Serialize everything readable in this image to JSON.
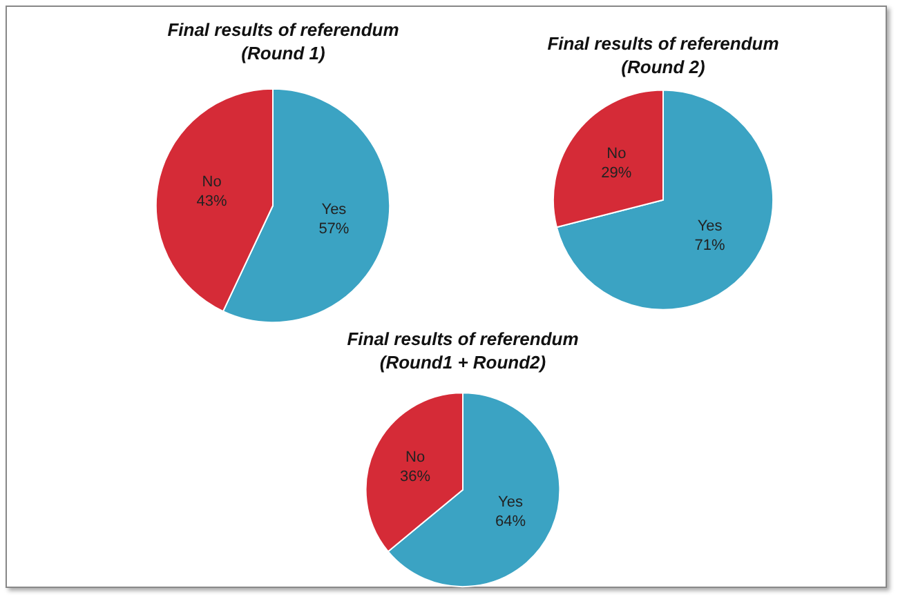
{
  "chart_data": [
    {
      "type": "pie",
      "title": "Final results of referendum\n(Round 1)",
      "categories": [
        "Yes",
        "No"
      ],
      "values": [
        57,
        43
      ],
      "colors": [
        "#3ba3c3",
        "#d52b37"
      ],
      "value_labels": [
        "57%",
        "43%"
      ],
      "legend": false
    },
    {
      "type": "pie",
      "title": "Final results of referendum\n(Round 2)",
      "categories": [
        "Yes",
        "No"
      ],
      "values": [
        71,
        29
      ],
      "colors": [
        "#3ba3c3",
        "#d52b37"
      ],
      "value_labels": [
        "71%",
        "29%"
      ],
      "legend": false
    },
    {
      "type": "pie",
      "title": "Final results of referendum\n(Round1 + Round2)",
      "categories": [
        "Yes",
        "No"
      ],
      "values": [
        64,
        36
      ],
      "colors": [
        "#3ba3c3",
        "#d52b37"
      ],
      "value_labels": [
        "64%",
        "36%"
      ],
      "legend": false
    }
  ]
}
